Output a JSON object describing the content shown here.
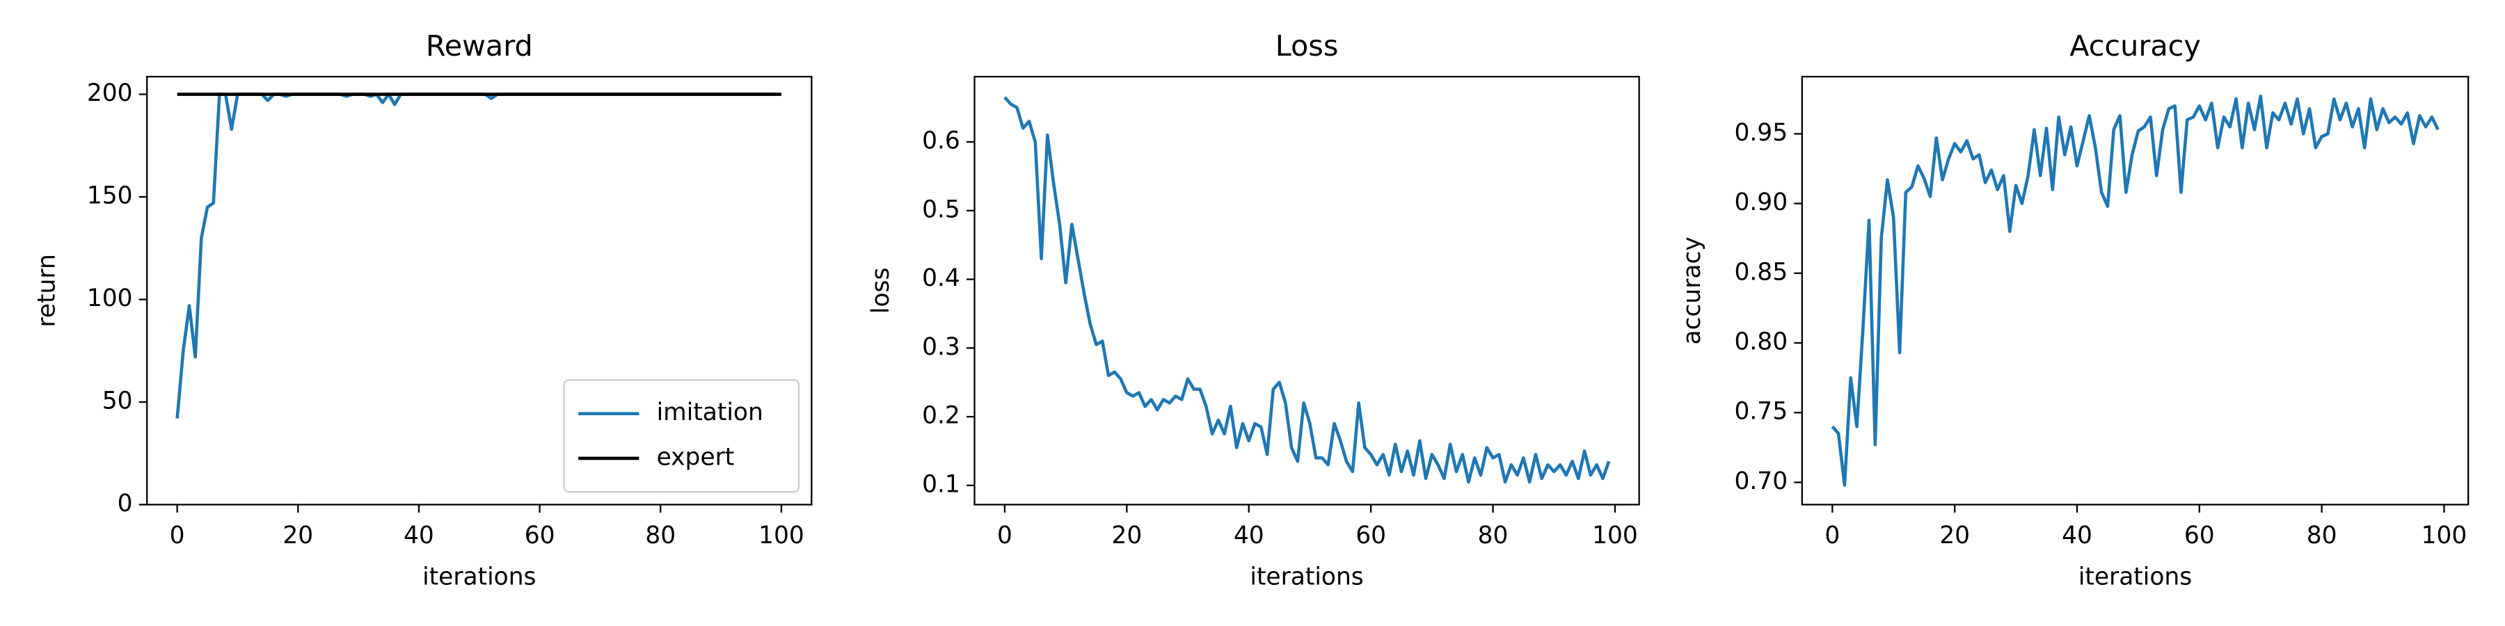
{
  "chart_data": [
    {
      "type": "line",
      "title": "Reward",
      "xlabel": "iterations",
      "ylabel": "return",
      "x": [
        0,
        1,
        2,
        3,
        4,
        5,
        6,
        7,
        8,
        9,
        10,
        11,
        12,
        13,
        14,
        15,
        16,
        17,
        18,
        19,
        20,
        21,
        22,
        23,
        24,
        25,
        26,
        27,
        28,
        29,
        30,
        31,
        32,
        33,
        34,
        35,
        36,
        37,
        38,
        39,
        40,
        41,
        42,
        43,
        44,
        45,
        46,
        47,
        48,
        49,
        50,
        51,
        52,
        53,
        54,
        55,
        56,
        57,
        58,
        59,
        60,
        61,
        62,
        63,
        64,
        65,
        66,
        67,
        68,
        69,
        70,
        71,
        72,
        73,
        74,
        75,
        76,
        77,
        78,
        79,
        80,
        81,
        82,
        83,
        84,
        85,
        86,
        87,
        88,
        89,
        90,
        91,
        92,
        93,
        94,
        95,
        96,
        97,
        98,
        99
      ],
      "series": [
        {
          "name": "imitation",
          "color": "#1f77b4",
          "values": [
            42,
            75,
            97,
            72,
            130,
            145,
            147,
            200,
            200,
            183,
            200,
            200,
            200,
            200,
            200,
            197,
            200,
            200,
            199,
            200,
            200,
            200,
            200,
            200,
            200,
            200,
            200,
            200,
            199,
            200,
            200,
            200,
            199,
            200,
            196,
            200,
            195,
            200,
            200,
            200,
            200,
            200,
            200,
            200,
            200,
            200,
            200,
            200,
            200,
            200,
            200,
            200,
            198,
            200,
            200,
            200,
            200,
            200,
            200,
            200,
            200,
            200,
            200,
            200,
            200,
            200,
            200,
            200,
            200,
            200,
            200,
            200,
            200,
            200,
            200,
            200,
            200,
            200,
            200,
            200,
            200,
            200,
            200,
            200,
            200,
            200,
            200,
            200,
            200,
            200,
            200,
            200,
            200,
            200,
            200,
            200,
            200,
            200,
            200,
            200
          ]
        },
        {
          "name": "expert",
          "color": "#000000",
          "x": [
            0,
            100
          ],
          "values": [
            200,
            200
          ]
        }
      ],
      "xlim": [
        -5,
        105
      ],
      "ylim": [
        0,
        208.6
      ],
      "xticks": [
        0,
        20,
        40,
        60,
        80,
        100
      ],
      "yticks": [
        0,
        50,
        100,
        150,
        200
      ],
      "legend": "lower right",
      "grid": false
    },
    {
      "type": "line",
      "title": "Loss",
      "xlabel": "iterations",
      "ylabel": "loss",
      "x": [
        0,
        1,
        2,
        3,
        4,
        5,
        6,
        7,
        8,
        9,
        10,
        11,
        12,
        13,
        14,
        15,
        16,
        17,
        18,
        19,
        20,
        21,
        22,
        23,
        24,
        25,
        26,
        27,
        28,
        29,
        30,
        31,
        32,
        33,
        34,
        35,
        36,
        37,
        38,
        39,
        40,
        41,
        42,
        43,
        44,
        45,
        46,
        47,
        48,
        49,
        50,
        51,
        52,
        53,
        54,
        55,
        56,
        57,
        58,
        59,
        60,
        61,
        62,
        63,
        64,
        65,
        66,
        67,
        68,
        69,
        70,
        71,
        72,
        73,
        74,
        75,
        76,
        77,
        78,
        79,
        80,
        81,
        82,
        83,
        84,
        85,
        86,
        87,
        88,
        89,
        90,
        91,
        92,
        93,
        94,
        95,
        96,
        97,
        98,
        99
      ],
      "series": [
        {
          "color": "#1f77b4",
          "values": [
            0.665,
            0.655,
            0.65,
            0.62,
            0.63,
            0.6,
            0.43,
            0.61,
            0.54,
            0.48,
            0.395,
            0.48,
            0.43,
            0.38,
            0.335,
            0.305,
            0.31,
            0.26,
            0.265,
            0.255,
            0.235,
            0.23,
            0.235,
            0.215,
            0.225,
            0.21,
            0.225,
            0.22,
            0.23,
            0.225,
            0.255,
            0.24,
            0.24,
            0.215,
            0.175,
            0.195,
            0.175,
            0.215,
            0.155,
            0.19,
            0.165,
            0.19,
            0.185,
            0.145,
            0.24,
            0.25,
            0.22,
            0.155,
            0.135,
            0.22,
            0.19,
            0.14,
            0.14,
            0.13,
            0.19,
            0.165,
            0.135,
            0.12,
            0.22,
            0.155,
            0.145,
            0.13,
            0.145,
            0.115,
            0.16,
            0.12,
            0.15,
            0.115,
            0.165,
            0.11,
            0.145,
            0.13,
            0.11,
            0.16,
            0.12,
            0.145,
            0.105,
            0.14,
            0.115,
            0.155,
            0.14,
            0.145,
            0.105,
            0.13,
            0.115,
            0.14,
            0.105,
            0.145,
            0.11,
            0.13,
            0.12,
            0.13,
            0.115,
            0.135,
            0.11,
            0.15,
            0.115,
            0.13,
            0.11,
            0.135
          ]
        }
      ],
      "xlim": [
        -4.95,
        103.95
      ],
      "ylim": [
        0.072,
        0.695
      ],
      "xticks": [
        0,
        20,
        40,
        60,
        80,
        100
      ],
      "yticks": [
        0.1,
        0.2,
        0.3,
        0.4,
        0.5,
        0.6
      ],
      "grid": false
    },
    {
      "type": "line",
      "title": "Accuracy",
      "xlabel": "iterations",
      "ylabel": "accuracy",
      "x": [
        0,
        1,
        2,
        3,
        4,
        5,
        6,
        7,
        8,
        9,
        10,
        11,
        12,
        13,
        14,
        15,
        16,
        17,
        18,
        19,
        20,
        21,
        22,
        23,
        24,
        25,
        26,
        27,
        28,
        29,
        30,
        31,
        32,
        33,
        34,
        35,
        36,
        37,
        38,
        39,
        40,
        41,
        42,
        43,
        44,
        45,
        46,
        47,
        48,
        49,
        50,
        51,
        52,
        53,
        54,
        55,
        56,
        57,
        58,
        59,
        60,
        61,
        62,
        63,
        64,
        65,
        66,
        67,
        68,
        69,
        70,
        71,
        72,
        73,
        74,
        75,
        76,
        77,
        78,
        79,
        80,
        81,
        82,
        83,
        84,
        85,
        86,
        87,
        88,
        89,
        90,
        91,
        92,
        93,
        94,
        95,
        96,
        97,
        98,
        99
      ],
      "series": [
        {
          "color": "#1f77b4",
          "values": [
            0.74,
            0.735,
            0.698,
            0.775,
            0.74,
            0.81,
            0.888,
            0.727,
            0.875,
            0.917,
            0.89,
            0.793,
            0.908,
            0.912,
            0.927,
            0.918,
            0.905,
            0.947,
            0.917,
            0.932,
            0.943,
            0.937,
            0.945,
            0.932,
            0.935,
            0.915,
            0.924,
            0.91,
            0.92,
            0.88,
            0.913,
            0.9,
            0.92,
            0.953,
            0.92,
            0.954,
            0.91,
            0.962,
            0.935,
            0.955,
            0.927,
            0.945,
            0.963,
            0.94,
            0.908,
            0.898,
            0.953,
            0.963,
            0.908,
            0.935,
            0.952,
            0.955,
            0.962,
            0.92,
            0.953,
            0.968,
            0.97,
            0.908,
            0.96,
            0.962,
            0.97,
            0.96,
            0.972,
            0.94,
            0.962,
            0.955,
            0.975,
            0.94,
            0.972,
            0.953,
            0.977,
            0.94,
            0.965,
            0.96,
            0.972,
            0.957,
            0.975,
            0.95,
            0.968,
            0.94,
            0.948,
            0.95,
            0.975,
            0.96,
            0.972,
            0.955,
            0.968,
            0.94,
            0.975,
            0.953,
            0.968,
            0.958,
            0.962,
            0.957,
            0.965,
            0.943,
            0.963,
            0.955,
            0.962,
            0.953
          ]
        }
      ],
      "xlim": [
        -4.95,
        103.95
      ],
      "ylim": [
        0.684,
        0.991
      ],
      "xticks": [
        0,
        20,
        40,
        60,
        80,
        100
      ],
      "yticks": [
        {
          "value": 0.7,
          "label": "0.70"
        },
        0.75,
        {
          "value": 0.8,
          "label": "0.80"
        },
        0.85,
        {
          "value": 0.9,
          "label": "0.90"
        },
        0.95
      ],
      "grid": false
    }
  ]
}
